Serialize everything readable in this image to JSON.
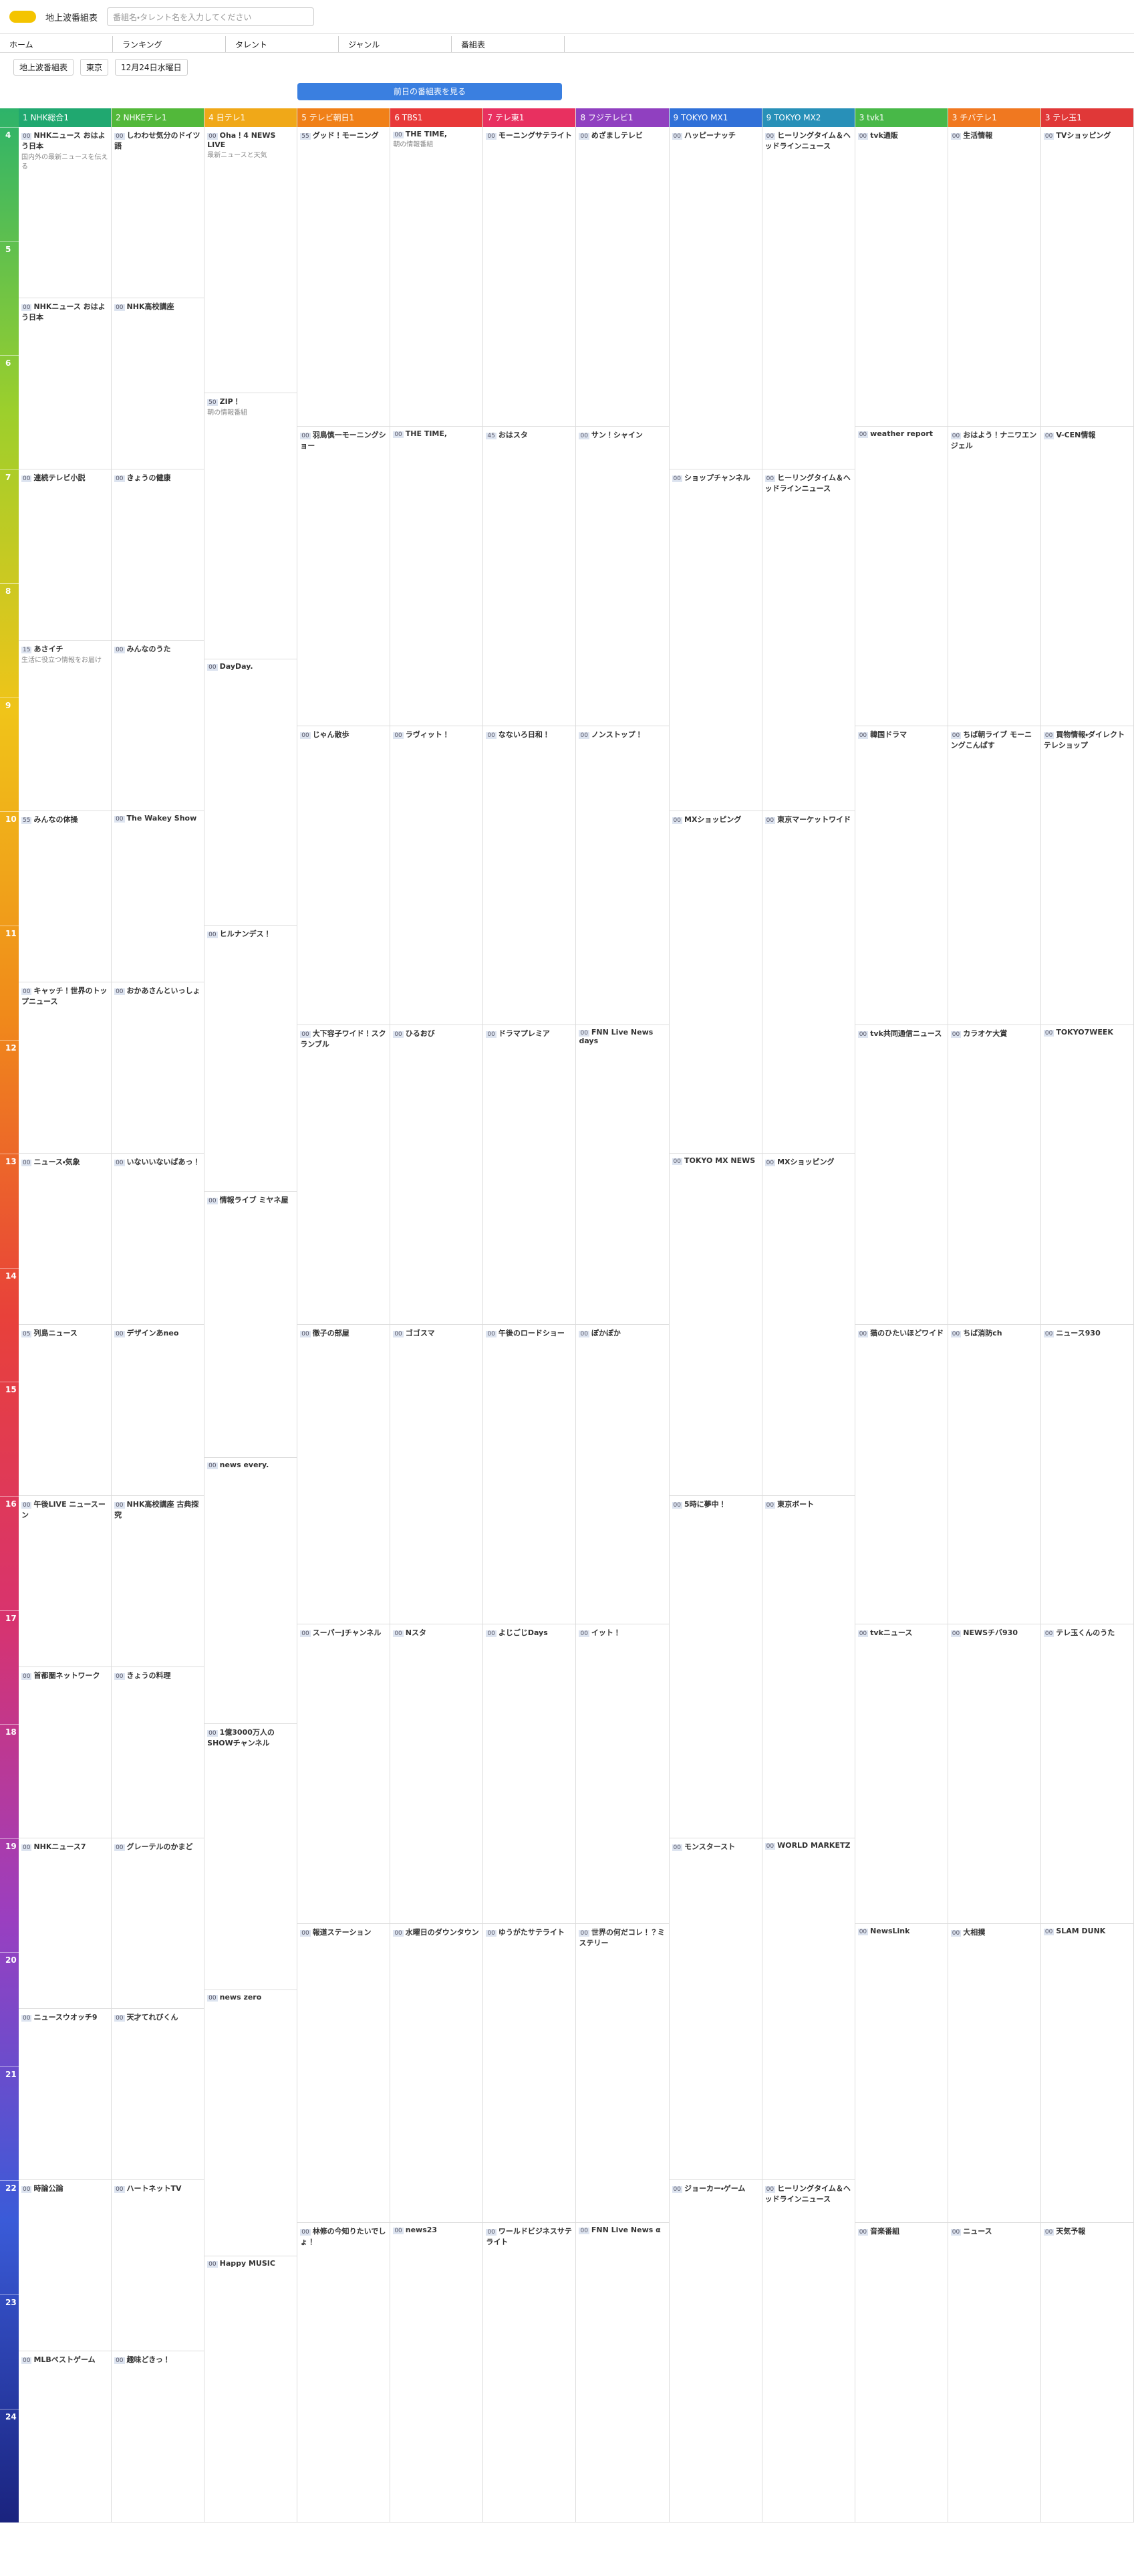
{
  "header": {
    "site": "地上波番組表",
    "search_placeholder": "番組名・タレント名を入力してください",
    "nav": [
      "ホーム",
      "ランキング",
      "タレント",
      "ジャンル",
      "番組表"
    ],
    "selects": [
      "地上波番組表",
      "東京",
      "12月24日水曜日"
    ],
    "prev_button": "前日の番組表を見る"
  },
  "hours": [
    "4",
    "5",
    "6",
    "7",
    "8",
    "9",
    "10",
    "11",
    "12",
    "13",
    "14",
    "15",
    "16",
    "17",
    "18",
    "19",
    "20",
    "21",
    "22",
    "23",
    "24"
  ],
  "channels": [
    {
      "name": "1 NHK総合1",
      "color": "#20a870",
      "programs": [
        {
          "m": "00",
          "title": "NHKニュース おはよう日本",
          "desc": "国内外の最新ニュースを伝える"
        },
        {
          "m": "00",
          "title": "NHKニュース おはよう日本",
          "desc": ""
        },
        {
          "m": "00",
          "title": "連続テレビ小説",
          "desc": ""
        },
        {
          "m": "15",
          "title": "あさイチ",
          "desc": "生活に役立つ情報をお届け"
        },
        {
          "m": "55",
          "title": "みんなの体操",
          "desc": ""
        },
        {
          "m": "00",
          "title": "キャッチ！世界のトップニュース",
          "desc": ""
        },
        {
          "m": "00",
          "title": "ニュース・気象",
          "desc": ""
        },
        {
          "m": "05",
          "title": "列島ニュース",
          "desc": ""
        },
        {
          "m": "00",
          "title": "午後LIVE ニュースーン",
          "desc": ""
        },
        {
          "m": "00",
          "title": "首都圏ネットワーク",
          "desc": ""
        },
        {
          "m": "00",
          "title": "NHKニュース7",
          "desc": ""
        },
        {
          "m": "00",
          "title": "ニュースウオッチ9",
          "desc": ""
        },
        {
          "m": "00",
          "title": "時論公論",
          "desc": ""
        },
        {
          "m": "00",
          "title": "MLBベストゲーム",
          "desc": ""
        }
      ]
    },
    {
      "name": "2 NHKEテレ1",
      "color": "#52b83a",
      "programs": [
        {
          "m": "00",
          "title": "しわわせ気分のドイツ語",
          "desc": ""
        },
        {
          "m": "00",
          "title": "NHK高校講座",
          "desc": ""
        },
        {
          "m": "00",
          "title": "きょうの健康",
          "desc": ""
        },
        {
          "m": "00",
          "title": "みんなのうた",
          "desc": ""
        },
        {
          "m": "00",
          "title": "The Wakey Show",
          "desc": ""
        },
        {
          "m": "00",
          "title": "おかあさんといっしょ",
          "desc": ""
        },
        {
          "m": "00",
          "title": "いないいないばあっ！",
          "desc": ""
        },
        {
          "m": "00",
          "title": "デザインあneo",
          "desc": ""
        },
        {
          "m": "00",
          "title": "NHK高校講座 古典探究",
          "desc": ""
        },
        {
          "m": "00",
          "title": "きょうの料理",
          "desc": ""
        },
        {
          "m": "00",
          "title": "グレーテルのかまど",
          "desc": ""
        },
        {
          "m": "00",
          "title": "天才てれびくん",
          "desc": ""
        },
        {
          "m": "00",
          "title": "ハートネットTV",
          "desc": ""
        },
        {
          "m": "00",
          "title": "趣味どきっ！",
          "desc": ""
        }
      ]
    },
    {
      "name": "4 日テレ1",
      "color": "#f0a818",
      "programs": [
        {
          "m": "00",
          "title": "Oha！4 NEWS LIVE",
          "desc": "最新ニュースと天気"
        },
        {
          "m": "50",
          "title": "ZIP！",
          "desc": "朝の情報番組"
        },
        {
          "m": "00",
          "title": "DayDay.",
          "desc": ""
        },
        {
          "m": "00",
          "title": "ヒルナンデス！",
          "desc": ""
        },
        {
          "m": "00",
          "title": "情報ライブ ミヤネ屋",
          "desc": ""
        },
        {
          "m": "00",
          "title": "news every.",
          "desc": ""
        },
        {
          "m": "00",
          "title": "1億3000万人のSHOWチャンネル",
          "desc": ""
        },
        {
          "m": "00",
          "title": "news zero",
          "desc": ""
        },
        {
          "m": "00",
          "title": "Happy MUSIC",
          "desc": ""
        }
      ]
    },
    {
      "name": "5 テレビ朝日1",
      "color": "#f08018",
      "programs": [
        {
          "m": "55",
          "title": "グッド！モーニング",
          "desc": ""
        },
        {
          "m": "00",
          "title": "羽鳥慎一モーニングショー",
          "desc": ""
        },
        {
          "m": "00",
          "title": "じゃん散歩",
          "desc": ""
        },
        {
          "m": "00",
          "title": "大下容子ワイド！スクランブル",
          "desc": ""
        },
        {
          "m": "00",
          "title": "徹子の部屋",
          "desc": ""
        },
        {
          "m": "00",
          "title": "スーパーJチャンネル",
          "desc": ""
        },
        {
          "m": "00",
          "title": "報道ステーション",
          "desc": ""
        },
        {
          "m": "00",
          "title": "林修の今知りたいでしょ！",
          "desc": ""
        }
      ]
    },
    {
      "name": "6 TBS1",
      "color": "#e83838",
      "programs": [
        {
          "m": "00",
          "title": "THE TIME,",
          "desc": "朝の情報番組"
        },
        {
          "m": "00",
          "title": "THE TIME,",
          "desc": ""
        },
        {
          "m": "00",
          "title": "ラヴィット！",
          "desc": ""
        },
        {
          "m": "00",
          "title": "ひるおび",
          "desc": ""
        },
        {
          "m": "00",
          "title": "ゴゴスマ",
          "desc": ""
        },
        {
          "m": "00",
          "title": "Nスタ",
          "desc": ""
        },
        {
          "m": "00",
          "title": "水曜日のダウンタウン",
          "desc": ""
        },
        {
          "m": "00",
          "title": "news23",
          "desc": ""
        }
      ]
    },
    {
      "name": "7 テレ東1",
      "color": "#e83060",
      "programs": [
        {
          "m": "00",
          "title": "モーニングサテライト",
          "desc": ""
        },
        {
          "m": "45",
          "title": "おはスタ",
          "desc": ""
        },
        {
          "m": "00",
          "title": "なないろ日和！",
          "desc": ""
        },
        {
          "m": "00",
          "title": "ドラマプレミア",
          "desc": ""
        },
        {
          "m": "00",
          "title": "午後のロードショー",
          "desc": ""
        },
        {
          "m": "00",
          "title": "よじごじDays",
          "desc": ""
        },
        {
          "m": "00",
          "title": "ゆうがたサテライト",
          "desc": ""
        },
        {
          "m": "00",
          "title": "ワールドビジネスサテライト",
          "desc": ""
        }
      ]
    },
    {
      "name": "8 フジテレビ1",
      "color": "#9040c0",
      "programs": [
        {
          "m": "00",
          "title": "めざましテレビ",
          "desc": ""
        },
        {
          "m": "00",
          "title": "サン！シャイン",
          "desc": ""
        },
        {
          "m": "00",
          "title": "ノンストップ！",
          "desc": ""
        },
        {
          "m": "00",
          "title": "FNN Live News days",
          "desc": ""
        },
        {
          "m": "00",
          "title": "ぽかぽか",
          "desc": ""
        },
        {
          "m": "00",
          "title": "イット！",
          "desc": ""
        },
        {
          "m": "00",
          "title": "世界の何だコレ！？ミステリー",
          "desc": ""
        },
        {
          "m": "00",
          "title": "FNN Live News α",
          "desc": ""
        }
      ]
    },
    {
      "name": "9 TOKYO MX1",
      "color": "#3070d8",
      "programs": [
        {
          "m": "00",
          "title": "ハッピーナッチ",
          "desc": ""
        },
        {
          "m": "00",
          "title": "ショップチャンネル",
          "desc": ""
        },
        {
          "m": "00",
          "title": "MXショッピング",
          "desc": ""
        },
        {
          "m": "00",
          "title": "TOKYO MX NEWS",
          "desc": ""
        },
        {
          "m": "00",
          "title": "5時に夢中！",
          "desc": ""
        },
        {
          "m": "00",
          "title": "モンスタースト",
          "desc": ""
        },
        {
          "m": "00",
          "title": "ジョーカー・ゲーム",
          "desc": ""
        }
      ]
    },
    {
      "name": "9 TOKYO MX2",
      "color": "#2890b8",
      "programs": [
        {
          "m": "00",
          "title": "ヒーリングタイム＆ヘッドラインニュース",
          "desc": ""
        },
        {
          "m": "00",
          "title": "ヒーリングタイム＆ヘッドラインニュース",
          "desc": ""
        },
        {
          "m": "00",
          "title": "東京マーケットワイド",
          "desc": ""
        },
        {
          "m": "00",
          "title": "MXショッピング",
          "desc": ""
        },
        {
          "m": "00",
          "title": "東京ボート",
          "desc": ""
        },
        {
          "m": "00",
          "title": "WORLD MARKETZ",
          "desc": ""
        },
        {
          "m": "00",
          "title": "ヒーリングタイム＆ヘッドラインニュース",
          "desc": ""
        }
      ]
    },
    {
      "name": "3 tvk1",
      "color": "#48b848",
      "programs": [
        {
          "m": "00",
          "title": "tvk通販",
          "desc": ""
        },
        {
          "m": "00",
          "title": "weather report",
          "desc": ""
        },
        {
          "m": "00",
          "title": "韓国ドラマ",
          "desc": ""
        },
        {
          "m": "00",
          "title": "tvk共同通信ニュース",
          "desc": ""
        },
        {
          "m": "00",
          "title": "猫のひたいほどワイド",
          "desc": ""
        },
        {
          "m": "00",
          "title": "tvkニュース",
          "desc": ""
        },
        {
          "m": "00",
          "title": "NewsLink",
          "desc": ""
        },
        {
          "m": "00",
          "title": "音楽番組",
          "desc": ""
        }
      ]
    },
    {
      "name": "3 チバテレ1",
      "color": "#f07820",
      "programs": [
        {
          "m": "00",
          "title": "生活情報",
          "desc": ""
        },
        {
          "m": "00",
          "title": "おはよう！ナニワエンジェル",
          "desc": ""
        },
        {
          "m": "00",
          "title": "ちば朝ライブ モーニングこんぱす",
          "desc": ""
        },
        {
          "m": "00",
          "title": "カラオケ大賞",
          "desc": ""
        },
        {
          "m": "00",
          "title": "ちば消防ch",
          "desc": ""
        },
        {
          "m": "00",
          "title": "NEWSチバ930",
          "desc": ""
        },
        {
          "m": "00",
          "title": "大相撲",
          "desc": ""
        },
        {
          "m": "00",
          "title": "ニュース",
          "desc": ""
        }
      ]
    },
    {
      "name": "3 テレ玉1",
      "color": "#e03838",
      "programs": [
        {
          "m": "00",
          "title": "TVショッピング",
          "desc": ""
        },
        {
          "m": "00",
          "title": "V-CEN情報",
          "desc": ""
        },
        {
          "m": "00",
          "title": "買物情報・ダイレクトテレショップ",
          "desc": ""
        },
        {
          "m": "00",
          "title": "TOKYO7WEEK",
          "desc": ""
        },
        {
          "m": "00",
          "title": "ニュース930",
          "desc": ""
        },
        {
          "m": "00",
          "title": "テレ玉くんのうた",
          "desc": ""
        },
        {
          "m": "00",
          "title": "SLAM DUNK",
          "desc": ""
        },
        {
          "m": "00",
          "title": "天気予報",
          "desc": ""
        }
      ]
    }
  ]
}
